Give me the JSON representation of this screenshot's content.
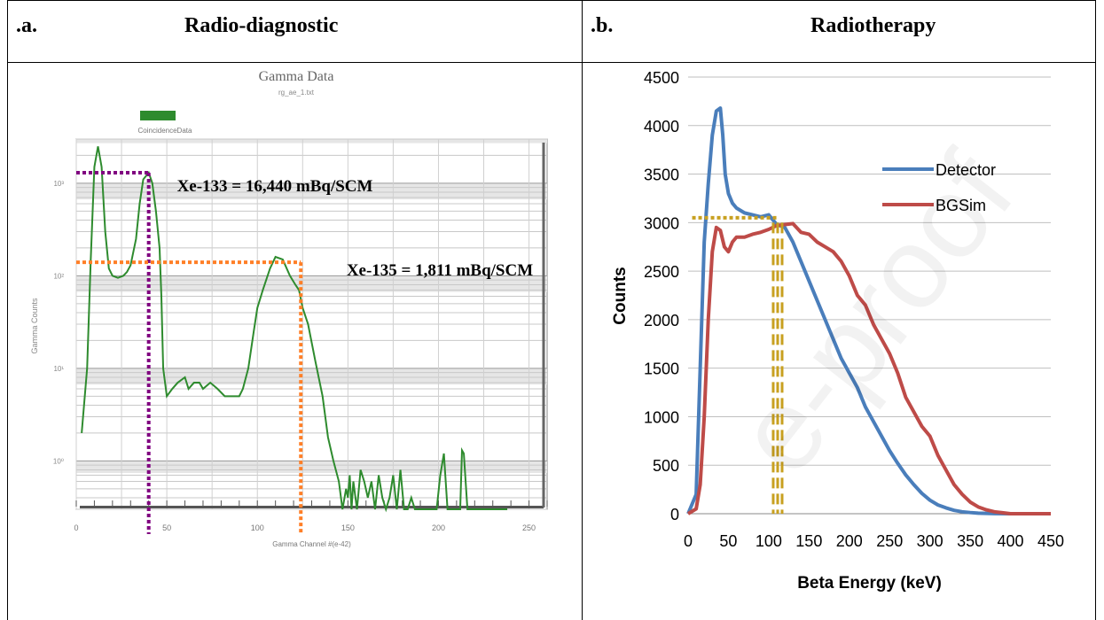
{
  "panels": {
    "a": {
      "letter": ".a.",
      "title": "Radio-diagnostic"
    },
    "b": {
      "letter": ".b.",
      "title": "Radiotherapy"
    }
  },
  "watermark": "e-proof",
  "chart_data": [
    {
      "type": "line",
      "title": "Gamma Data",
      "subtitle": "rg_ae_1.txt",
      "xlabel": "Gamma Channel #(e-42)",
      "ylabel": "Gamma Counts",
      "xlim": [
        0,
        260
      ],
      "x_ticks": [
        0,
        50,
        100,
        150,
        200,
        250
      ],
      "y_scale": "log",
      "ylim": [
        0.3,
        3000
      ],
      "y_ticks": [
        1,
        10,
        100,
        1000
      ],
      "y_tick_labels": [
        "10⁰",
        "10¹",
        "10²",
        "10³"
      ],
      "grid": true,
      "legend_position": "top-left",
      "series": [
        {
          "name": "CoincidenceData",
          "color": "#2e8b2e",
          "x": [
            3,
            6,
            8,
            10,
            12,
            14,
            16,
            18,
            20,
            23,
            26,
            28,
            30,
            33,
            35,
            37,
            40,
            42,
            44,
            46,
            47,
            48,
            50,
            53,
            56,
            60,
            62,
            65,
            68,
            70,
            74,
            78,
            82,
            86,
            90,
            92,
            95,
            98,
            100,
            103,
            107,
            110,
            114,
            118,
            121,
            123,
            125,
            128,
            132,
            136,
            139,
            142,
            145,
            147,
            149,
            150,
            151,
            152,
            153,
            155,
            157,
            159,
            161,
            163,
            165,
            167,
            169,
            171,
            173,
            175,
            177,
            179,
            181,
            183,
            185,
            187,
            189,
            192,
            195,
            199,
            201,
            203,
            205,
            207,
            209,
            211,
            212,
            213,
            214,
            215,
            216,
            220,
            226,
            232,
            238
          ],
          "y": [
            2,
            10,
            150,
            1500,
            2500,
            1500,
            300,
            120,
            100,
            95,
            100,
            110,
            130,
            250,
            600,
            1100,
            1300,
            1000,
            500,
            200,
            60,
            10,
            5,
            6,
            7,
            8,
            6,
            7,
            7,
            6,
            7,
            6,
            5,
            5,
            5,
            6,
            10,
            25,
            45,
            70,
            120,
            160,
            150,
            100,
            80,
            70,
            45,
            30,
            12,
            5,
            1.8,
            1.0,
            0.6,
            0.3,
            0.5,
            0.4,
            0.7,
            0.3,
            0.6,
            0.3,
            0.8,
            0.6,
            0.4,
            0.6,
            0.3,
            0.7,
            0.4,
            0.3,
            0.4,
            0.7,
            0.3,
            0.8,
            0.3,
            0.3,
            0.4,
            0.3,
            0.3,
            0.3,
            0.3,
            0.3,
            0.7,
            1.2,
            0.3,
            0.3,
            0.3,
            0.3,
            0.3,
            1.3,
            1.2,
            0.6,
            0.3,
            0.3,
            0.3,
            0.3,
            0.3
          ]
        }
      ],
      "annotations": [
        {
          "text": "Xe-133 = 16,440 mBq/SCM",
          "x": 40,
          "y": 1300,
          "color": "#800080"
        },
        {
          "text": "Xe-135 = 1,811 mBq/SCM",
          "x": 124,
          "y": 140,
          "color": "#ff7f27"
        }
      ]
    },
    {
      "type": "line",
      "xlabel": "Beta Energy (keV)",
      "ylabel": "Counts",
      "xlim": [
        0,
        450
      ],
      "ylim": [
        0,
        4500
      ],
      "x_ticks": [
        0,
        50,
        100,
        150,
        200,
        250,
        300,
        350,
        400,
        450
      ],
      "y_ticks": [
        0,
        500,
        1000,
        1500,
        2000,
        2500,
        3000,
        3500,
        4000,
        4500
      ],
      "grid": true,
      "legend_position": "right",
      "series": [
        {
          "name": "Detector",
          "color": "#4a7ebb",
          "x": [
            0,
            10,
            15,
            20,
            25,
            30,
            35,
            40,
            43,
            46,
            50,
            55,
            60,
            70,
            80,
            90,
            100,
            110,
            120,
            130,
            140,
            150,
            160,
            170,
            180,
            190,
            200,
            210,
            220,
            230,
            240,
            250,
            260,
            270,
            280,
            290,
            300,
            310,
            320,
            330,
            340,
            350,
            360,
            370,
            380,
            400,
            420,
            450
          ],
          "y": [
            0,
            200,
            1500,
            2800,
            3400,
            3900,
            4150,
            4180,
            3900,
            3500,
            3300,
            3200,
            3150,
            3100,
            3080,
            3060,
            3080,
            2980,
            2950,
            2800,
            2600,
            2400,
            2200,
            2000,
            1800,
            1600,
            1450,
            1300,
            1100,
            950,
            800,
            650,
            520,
            400,
            300,
            210,
            140,
            90,
            60,
            35,
            20,
            12,
            6,
            3,
            1,
            0,
            0,
            0
          ]
        },
        {
          "name": "BGSim",
          "color": "#be4b48",
          "x": [
            0,
            10,
            15,
            20,
            25,
            30,
            35,
            40,
            45,
            50,
            55,
            60,
            70,
            80,
            90,
            100,
            110,
            120,
            130,
            140,
            150,
            160,
            170,
            180,
            190,
            200,
            210,
            220,
            230,
            240,
            250,
            260,
            270,
            280,
            290,
            300,
            310,
            320,
            330,
            340,
            350,
            360,
            370,
            380,
            390,
            400,
            420,
            450
          ],
          "y": [
            0,
            50,
            300,
            1000,
            2000,
            2700,
            2950,
            2920,
            2750,
            2700,
            2800,
            2850,
            2850,
            2880,
            2900,
            2930,
            2970,
            2980,
            2990,
            2900,
            2880,
            2800,
            2750,
            2700,
            2600,
            2450,
            2250,
            2150,
            1950,
            1800,
            1650,
            1450,
            1200,
            1050,
            900,
            800,
            600,
            450,
            300,
            200,
            120,
            70,
            40,
            20,
            10,
            0,
            0,
            0
          ]
        }
      ],
      "annotations": [
        {
          "type": "h-dotted",
          "y": 3050,
          "x_from": 5,
          "x_to": 110,
          "color": "#c8a020"
        },
        {
          "type": "v-dashed",
          "x": 110,
          "y_from": 0,
          "y_to": 3000,
          "color": "#c8a020"
        }
      ]
    }
  ]
}
